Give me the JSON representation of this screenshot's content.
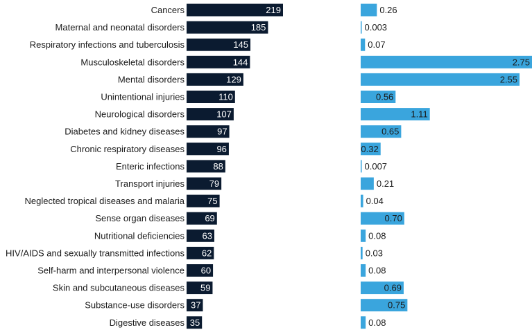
{
  "colors": {
    "left_bar": "#0b1b30",
    "right_bar": "#3aa5dd",
    "label": "#1a1a1a",
    "value_on_dark": "#ffffff",
    "value_dark_text": "#1a1a1a"
  },
  "chart_data": [
    {
      "type": "bar",
      "orientation": "horizontal",
      "categories": [
        "Cancers",
        "Maternal and neonatal disorders",
        "Respiratory infections and tuberculosis",
        "Musculoskeletal disorders",
        "Mental disorders",
        "Unintentional injuries",
        "Neurological disorders",
        "Diabetes and kidney diseases",
        "Chronic respiratory diseases",
        "Enteric infections",
        "Transport injuries",
        "Neglected tropical diseases and malaria",
        "Sense organ diseases",
        "Nutritional deficiencies",
        "HIV/AIDS and sexually transmitted infections",
        "Self-harm and interpersonal violence",
        "Skin and subcutaneous diseases",
        "Substance-use disorders",
        "Digestive diseases"
      ],
      "values": [
        219,
        185,
        145,
        144,
        129,
        110,
        107,
        97,
        96,
        88,
        79,
        75,
        69,
        63,
        62,
        60,
        59,
        37,
        35
      ],
      "value_labels": [
        "219",
        "185",
        "145",
        "144",
        "129",
        "110",
        "107",
        "97",
        "96",
        "88",
        "79",
        "75",
        "69",
        "63",
        "62",
        "60",
        "59",
        "37",
        "35"
      ],
      "xlim": [
        0,
        219
      ]
    },
    {
      "type": "bar",
      "orientation": "horizontal",
      "values": [
        0.26,
        0.003,
        0.07,
        2.75,
        2.55,
        0.56,
        1.11,
        0.65,
        0.32,
        0.007,
        0.21,
        0.04,
        0.7,
        0.08,
        0.03,
        0.08,
        0.69,
        0.75,
        0.08
      ],
      "value_labels": [
        "0.26",
        "0.003",
        "0.07",
        "2.75",
        "2.55",
        "0.56",
        "1.11",
        "0.65",
        "0.32",
        "0.007",
        "0.21",
        "0.04",
        "0.70",
        "0.08",
        "0.03",
        "0.08",
        "0.69",
        "0.75",
        "0.08"
      ],
      "xlim": [
        0,
        2.75
      ]
    }
  ]
}
